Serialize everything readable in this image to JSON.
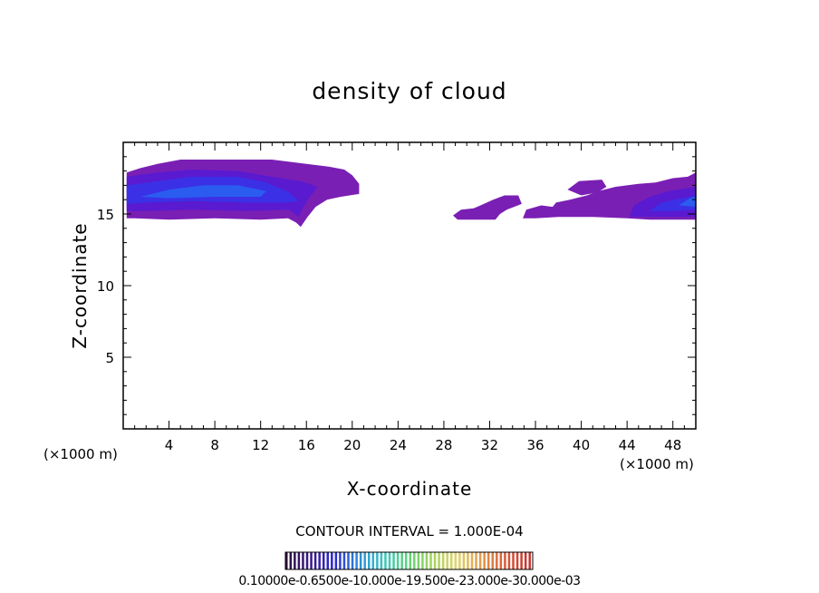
{
  "chart_data": {
    "type": "contour",
    "title": "density of cloud",
    "xlabel": "X-coordinate",
    "ylabel": "Z-coordinate",
    "x_unit": "(×1000 m)",
    "x_unit_right": "(×1000 m)",
    "xlim": [
      0,
      50
    ],
    "ylim": [
      0,
      20
    ],
    "xticks": [
      4,
      8,
      12,
      16,
      20,
      24,
      28,
      32,
      36,
      40,
      44,
      48
    ],
    "yticks": [
      5,
      10,
      15
    ],
    "contour_interval_text": "CONTOUR INTERVAL = 1.000E-04",
    "colorbar_labels_text": "0.10000e-0.6500e-10.000e-19.500e-23.000e-30.000e-03",
    "colorbar_colors": [
      "#2a0f3c",
      "#3a1a8a",
      "#2b2bd6",
      "#2e8fd8",
      "#39c6c0",
      "#5fd37a",
      "#a5d35a",
      "#e0d468",
      "#e39a4a",
      "#d85a3a",
      "#c8322e"
    ],
    "regions": [
      {
        "name": "cloud-west",
        "polygon": [
          [
            0.3,
            14.7
          ],
          [
            0.3,
            17.9
          ],
          [
            1.5,
            18.2
          ],
          [
            3,
            18.5
          ],
          [
            5,
            18.8
          ],
          [
            9,
            18.8
          ],
          [
            13,
            18.8
          ],
          [
            16,
            18.5
          ],
          [
            18,
            18.3
          ],
          [
            19.3,
            18.1
          ],
          [
            20,
            17.7
          ],
          [
            20.6,
            17.1
          ],
          [
            20.6,
            16.4
          ],
          [
            19,
            16.2
          ],
          [
            17.8,
            16.0
          ],
          [
            16.8,
            15.5
          ],
          [
            16.1,
            14.8
          ],
          [
            15.5,
            14.1
          ],
          [
            15.1,
            14.4
          ],
          [
            14.4,
            14.7
          ],
          [
            12,
            14.6
          ],
          [
            8,
            14.7
          ],
          [
            4,
            14.6
          ],
          [
            1,
            14.7
          ]
        ],
        "level": 1
      },
      {
        "name": "cloud-west-core-mid",
        "polygon": [
          [
            0.3,
            15.2
          ],
          [
            0.3,
            17.6
          ],
          [
            3,
            17.9
          ],
          [
            6,
            18.1
          ],
          [
            10,
            18.0
          ],
          [
            13,
            17.6
          ],
          [
            15.5,
            17.3
          ],
          [
            17,
            16.9
          ],
          [
            16.3,
            16.2
          ],
          [
            15.6,
            15.3
          ],
          [
            15.3,
            14.8
          ],
          [
            14.5,
            15.3
          ],
          [
            11,
            15.2
          ],
          [
            6,
            15.3
          ],
          [
            2,
            15.2
          ]
        ],
        "level": 2
      },
      {
        "name": "cloud-west-core-high",
        "polygon": [
          [
            0.3,
            15.7
          ],
          [
            0.3,
            17.0
          ],
          [
            3,
            17.3
          ],
          [
            6,
            17.6
          ],
          [
            10,
            17.6
          ],
          [
            12.5,
            17.2
          ],
          [
            14.5,
            16.5
          ],
          [
            15.3,
            15.9
          ],
          [
            14.3,
            15.8
          ],
          [
            11,
            15.8
          ],
          [
            6,
            15.9
          ],
          [
            2,
            15.8
          ]
        ],
        "level": 3
      },
      {
        "name": "cloud-west-core-peak",
        "polygon": [
          [
            1.5,
            16.2
          ],
          [
            4,
            16.7
          ],
          [
            7,
            17.0
          ],
          [
            10,
            17.0
          ],
          [
            12.5,
            16.6
          ],
          [
            12,
            16.2
          ],
          [
            8,
            16.2
          ],
          [
            4,
            16.1
          ]
        ],
        "level": 4
      },
      {
        "name": "cloud-east-small-1",
        "polygon": [
          [
            28.8,
            14.9
          ],
          [
            29.5,
            15.3
          ],
          [
            30.6,
            15.4
          ],
          [
            31.2,
            15.6
          ],
          [
            32.3,
            16.0
          ],
          [
            33.3,
            16.3
          ],
          [
            34.5,
            16.3
          ],
          [
            34.8,
            15.7
          ],
          [
            33.5,
            15.3
          ],
          [
            32.9,
            15.0
          ],
          [
            32.5,
            14.6
          ],
          [
            30.5,
            14.6
          ],
          [
            29.2,
            14.6
          ]
        ],
        "level": 1
      },
      {
        "name": "cloud-east-large",
        "polygon": [
          [
            34.9,
            14.7
          ],
          [
            35.2,
            15.3
          ],
          [
            36.5,
            15.6
          ],
          [
            37.5,
            15.5
          ],
          [
            37.8,
            15.8
          ],
          [
            39,
            16.0
          ],
          [
            40.5,
            16.3
          ],
          [
            41.5,
            16.6
          ],
          [
            43,
            16.9
          ],
          [
            45,
            17.1
          ],
          [
            46.5,
            17.2
          ],
          [
            48,
            17.5
          ],
          [
            49.3,
            17.6
          ],
          [
            50,
            17.9
          ],
          [
            50,
            14.6
          ],
          [
            48,
            14.6
          ],
          [
            46,
            14.6
          ],
          [
            44,
            14.7
          ],
          [
            41,
            14.8
          ],
          [
            38,
            14.8
          ],
          [
            36,
            14.7
          ]
        ],
        "level": 1
      },
      {
        "name": "cloud-east-upper",
        "polygon": [
          [
            38.8,
            16.7
          ],
          [
            39.8,
            17.3
          ],
          [
            41.8,
            17.4
          ],
          [
            42.2,
            16.9
          ],
          [
            41.4,
            16.5
          ],
          [
            40,
            16.3
          ]
        ],
        "level": 1
      },
      {
        "name": "cloud-east-core-mid",
        "polygon": [
          [
            44.2,
            14.8
          ],
          [
            44.6,
            15.6
          ],
          [
            46,
            16.2
          ],
          [
            47.6,
            16.6
          ],
          [
            49.2,
            16.8
          ],
          [
            50,
            16.9
          ],
          [
            50,
            14.8
          ],
          [
            48,
            14.8
          ],
          [
            46,
            14.8
          ]
        ],
        "level": 2
      },
      {
        "name": "cloud-east-core-high",
        "polygon": [
          [
            46,
            15.2
          ],
          [
            47,
            15.8
          ],
          [
            48.8,
            16.1
          ],
          [
            50,
            16.3
          ],
          [
            50,
            15.3
          ],
          [
            48,
            15.2
          ]
        ],
        "level": 3
      },
      {
        "name": "cloud-east-core-peak",
        "polygon": [
          [
            48.5,
            15.6
          ],
          [
            49.5,
            16.1
          ],
          [
            50,
            16.2
          ],
          [
            50,
            15.5
          ]
        ],
        "level": 4
      }
    ],
    "level_colors": [
      "#ffffff",
      "#7a1fb4",
      "#5a1ad0",
      "#3b30e6",
      "#2a5cf0"
    ]
  }
}
